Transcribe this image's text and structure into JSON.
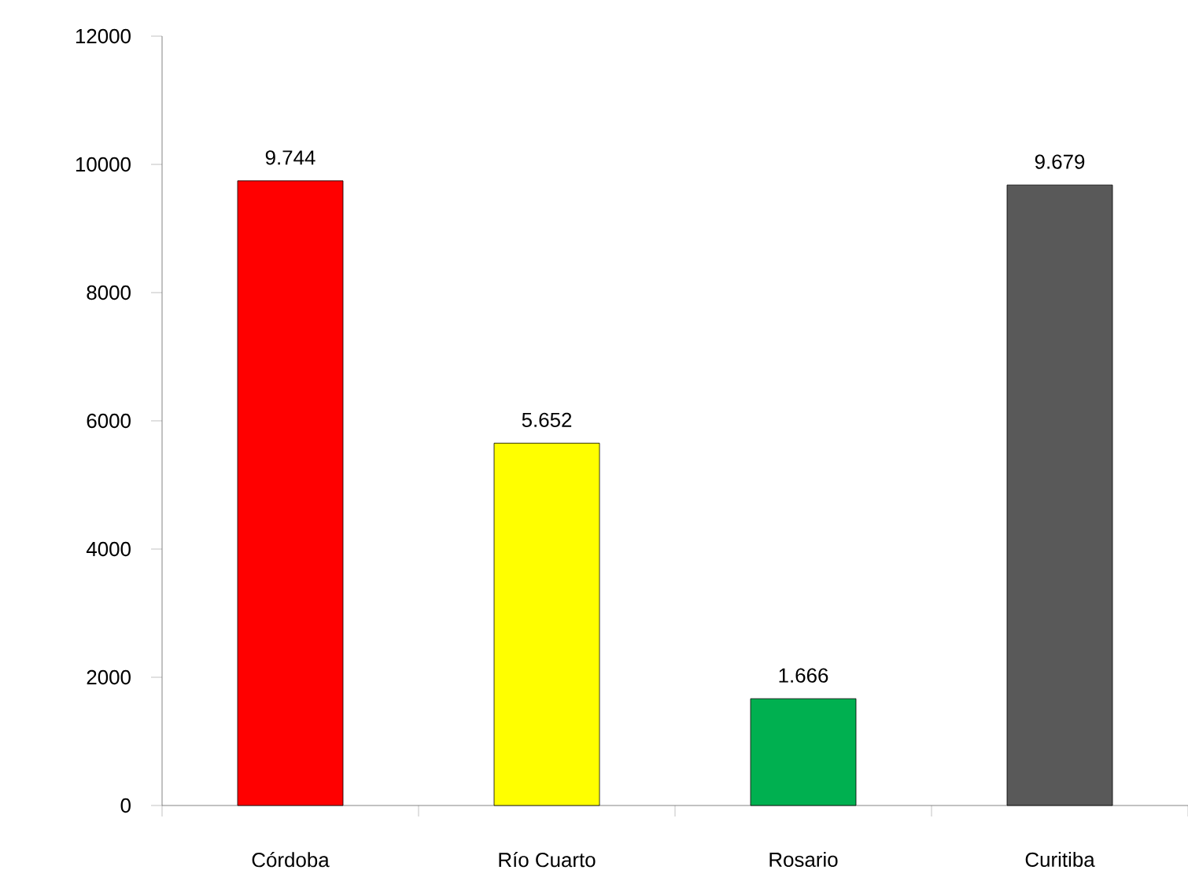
{
  "chart_data": {
    "type": "bar",
    "categories": [
      "Córdoba",
      "Río Cuarto",
      "Rosario",
      "Curitiba"
    ],
    "values": [
      9744,
      5652,
      1666,
      9679
    ],
    "colors": [
      "#ff0000",
      "#ffff00",
      "#00b050",
      "#595959"
    ],
    "value_labels": [
      "9.744",
      "5.652",
      "1.666",
      "9.679"
    ],
    "ylim": [
      0,
      12000
    ],
    "yticks": [
      0,
      2000,
      4000,
      6000,
      8000,
      10000,
      12000
    ]
  }
}
